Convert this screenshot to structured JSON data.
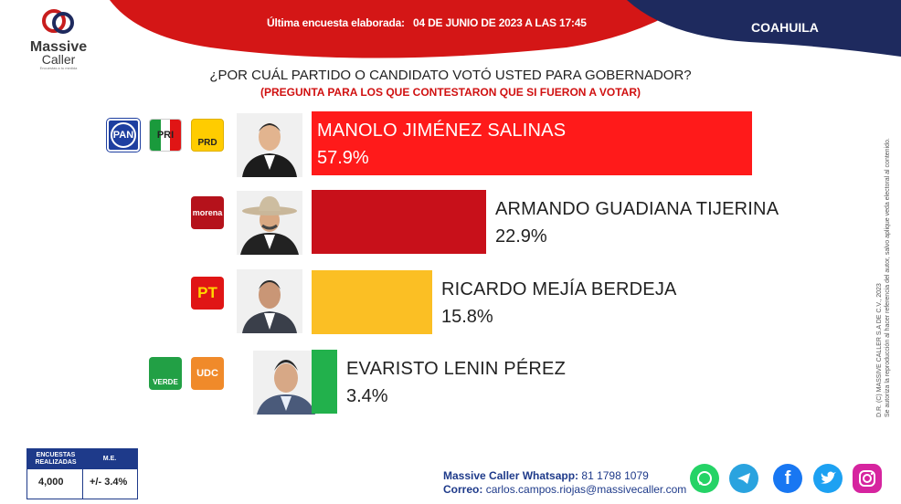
{
  "header": {
    "logo_line1": "Massive",
    "logo_line2": "Caller",
    "logo_tag": "Encuestas a tu medida",
    "label": "Última encuesta elaborada:",
    "date": "04 DE JUNIO DE 2023 A LAS 17:45",
    "state": "COAHUILA",
    "colors": {
      "red": "#e01515",
      "navy": "#1e2a5e"
    }
  },
  "question": "¿POR CUÁL PARTIDO O CANDIDATO VOTÓ USTED PARA GOBERNADOR?",
  "subquestion": "(PREGUNTA PARA LOS QUE CONTESTARON QUE SI FUERON A VOTAR)",
  "chart_data": {
    "type": "bar",
    "categories": [
      "MANOLO JIMÉNEZ SALINAS",
      "ARMANDO GUADIANA TIJERINA",
      "RICARDO MEJÍA BERDEJA",
      "EVARISTO LENIN PÉREZ"
    ],
    "values": [
      57.9,
      22.9,
      15.8,
      3.4
    ],
    "value_labels": [
      "57.9%",
      "22.9%",
      "15.8%",
      "3.4%"
    ],
    "colors": [
      "#ff1a1a",
      "#c8101a",
      "#fbbf24",
      "#22b14c"
    ],
    "parties": [
      [
        "PAN",
        "PRI",
        "PRD"
      ],
      [
        "morena"
      ],
      [
        "PT"
      ],
      [
        "VERDE",
        "UDC"
      ]
    ]
  },
  "disclaimer": [
    "D.R. (C) MASSIVE CALLER S.A DE C.V., 2023",
    "Se autoriza la reproducción al hacer referencia del autor, salvo aplique veda electoral al contenido."
  ],
  "stats": {
    "h1": "ENCUESTAS REALIZADAS",
    "h2": "M.E.",
    "v1": "4,000",
    "v2": "+/- 3.4%"
  },
  "contact": {
    "wa_label": "Massive Caller Whatsapp:",
    "wa_value": "81 1798 1079",
    "mail_label": "Correo:",
    "mail_value": "carlos.campos.riojas@massivecaller.com"
  },
  "social_icons": [
    "whatsapp-icon",
    "telegram-icon",
    "facebook-icon",
    "twitter-icon",
    "instagram-icon"
  ]
}
